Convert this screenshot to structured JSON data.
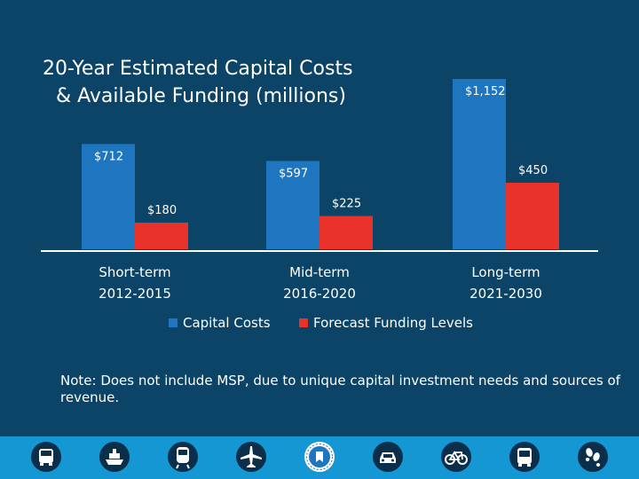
{
  "slide": {
    "title_line1": "20-Year Estimated Capital Costs",
    "title_line2": "& Available Funding (millions)",
    "note": "Note: Does not include MSP, due to unique capital investment needs and sources of revenue."
  },
  "colors": {
    "background": "#0b4466",
    "capital_costs": "#1f76c0",
    "forecast_funding": "#e8322a",
    "footer": "#1597d3",
    "text": "#ffffff"
  },
  "chart_data": {
    "type": "bar",
    "title": "20-Year Estimated Capital Costs & Available Funding (millions)",
    "categories": [
      "Short-term",
      "Mid-term",
      "Long-term"
    ],
    "category_years": [
      "2012-2015",
      "2016-2020",
      "2021-2030"
    ],
    "series": [
      {
        "name": "Capital Costs",
        "values": [
          712,
          597,
          1152
        ],
        "labels": [
          "$712",
          "$597",
          "$1,152"
        ],
        "color": "#1f76c0"
      },
      {
        "name": "Forecast Funding Levels",
        "values": [
          180,
          225,
          450
        ],
        "labels": [
          "$180",
          "$225",
          "$450"
        ],
        "color": "#e8322a"
      }
    ],
    "ylim": [
      0,
      1200
    ],
    "xlabel": "",
    "ylabel": "",
    "grid": false,
    "legend": "bottom-center"
  },
  "footer_icons": [
    "truck-icon",
    "ship-icon",
    "train-icon",
    "airplane-icon",
    "state-seal-icon",
    "car-icon",
    "bicycle-icon",
    "bus-icon",
    "footprints-icon"
  ]
}
